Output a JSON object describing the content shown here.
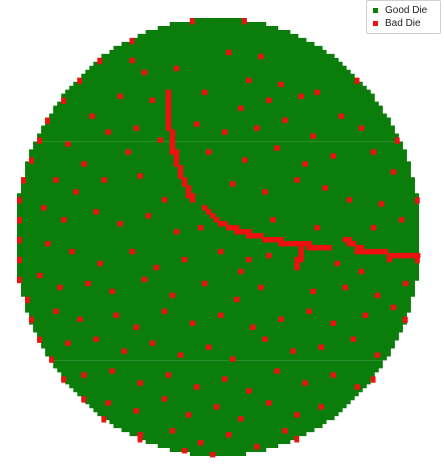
{
  "chart_data": {
    "type": "scatter",
    "title": "",
    "xlabel": "",
    "ylabel": "",
    "grid": false,
    "legend_placement": "top-right",
    "wafer": {
      "grid_columns": 100,
      "grid_rows": 110,
      "radius_cols": 50,
      "radius_rows": 55
    },
    "series": [
      {
        "name": "Good Die",
        "color": "#0b7d0b",
        "fill": "all dies within wafer edge not marked bad"
      },
      {
        "name": "Bad Die",
        "color": "#ee1111",
        "scratches": [
          {
            "from": [
              37,
              18
            ],
            "to": [
              37,
              24
            ]
          },
          {
            "from": [
              37,
              24
            ],
            "to": [
              38,
              31
            ]
          },
          {
            "from": [
              38,
              31
            ],
            "to": [
              40,
              38
            ]
          },
          {
            "from": [
              40,
              38
            ],
            "to": [
              43,
              45
            ]
          },
          {
            "from": [
              46,
              47
            ],
            "to": [
              50,
              51
            ]
          },
          {
            "from": [
              50,
              51
            ],
            "to": [
              58,
              54
            ]
          },
          {
            "from": [
              58,
              54
            ],
            "to": [
              67,
              56
            ]
          },
          {
            "from": [
              67,
              56
            ],
            "to": [
              77,
              57
            ]
          },
          {
            "from": [
              81,
              55
            ],
            "to": [
              86,
              58
            ]
          },
          {
            "from": [
              84,
              58
            ],
            "to": [
              99,
              59
            ]
          },
          {
            "from": [
              70,
              57
            ],
            "to": [
              69,
              62
            ]
          }
        ],
        "points": [
          [
            28,
            10
          ],
          [
            31,
            13
          ],
          [
            52,
            8
          ],
          [
            60,
            9
          ],
          [
            39,
            12
          ],
          [
            57,
            15
          ],
          [
            65,
            16
          ],
          [
            70,
            19
          ],
          [
            25,
            19
          ],
          [
            33,
            20
          ],
          [
            46,
            18
          ],
          [
            55,
            22
          ],
          [
            62,
            20
          ],
          [
            74,
            18
          ],
          [
            80,
            24
          ],
          [
            18,
            24
          ],
          [
            22,
            28
          ],
          [
            29,
            27
          ],
          [
            44,
            26
          ],
          [
            51,
            28
          ],
          [
            59,
            27
          ],
          [
            66,
            25
          ],
          [
            73,
            29
          ],
          [
            85,
            27
          ],
          [
            12,
            31
          ],
          [
            16,
            36
          ],
          [
            27,
            33
          ],
          [
            35,
            30
          ],
          [
            47,
            33
          ],
          [
            56,
            35
          ],
          [
            64,
            32
          ],
          [
            71,
            36
          ],
          [
            78,
            34
          ],
          [
            88,
            33
          ],
          [
            93,
            38
          ],
          [
            9,
            40
          ],
          [
            14,
            43
          ],
          [
            21,
            40
          ],
          [
            30,
            39
          ],
          [
            36,
            45
          ],
          [
            53,
            41
          ],
          [
            61,
            43
          ],
          [
            69,
            40
          ],
          [
            76,
            42
          ],
          [
            82,
            45
          ],
          [
            90,
            46
          ],
          [
            6,
            47
          ],
          [
            11,
            50
          ],
          [
            19,
            48
          ],
          [
            25,
            51
          ],
          [
            32,
            49
          ],
          [
            39,
            53
          ],
          [
            45,
            52
          ],
          [
            57,
            60
          ],
          [
            63,
            50
          ],
          [
            74,
            52
          ],
          [
            88,
            52
          ],
          [
            95,
            50
          ],
          [
            7,
            56
          ],
          [
            13,
            58
          ],
          [
            20,
            61
          ],
          [
            28,
            58
          ],
          [
            34,
            62
          ],
          [
            41,
            60
          ],
          [
            50,
            58
          ],
          [
            55,
            63
          ],
          [
            62,
            59
          ],
          [
            79,
            61
          ],
          [
            85,
            63
          ],
          [
            92,
            60
          ],
          [
            5,
            64
          ],
          [
            10,
            67
          ],
          [
            17,
            66
          ],
          [
            23,
            68
          ],
          [
            31,
            65
          ],
          [
            38,
            69
          ],
          [
            46,
            66
          ],
          [
            54,
            70
          ],
          [
            60,
            67
          ],
          [
            73,
            68
          ],
          [
            81,
            67
          ],
          [
            89,
            69
          ],
          [
            96,
            66
          ],
          [
            9,
            73
          ],
          [
            15,
            75
          ],
          [
            24,
            74
          ],
          [
            29,
            77
          ],
          [
            36,
            73
          ],
          [
            43,
            76
          ],
          [
            50,
            74
          ],
          [
            58,
            77
          ],
          [
            65,
            75
          ],
          [
            72,
            73
          ],
          [
            78,
            76
          ],
          [
            86,
            74
          ],
          [
            93,
            72
          ],
          [
            12,
            81
          ],
          [
            19,
            80
          ],
          [
            26,
            83
          ],
          [
            33,
            81
          ],
          [
            40,
            84
          ],
          [
            47,
            82
          ],
          [
            53,
            85
          ],
          [
            61,
            80
          ],
          [
            68,
            83
          ],
          [
            75,
            82
          ],
          [
            83,
            80
          ],
          [
            89,
            84
          ],
          [
            16,
            89
          ],
          [
            23,
            88
          ],
          [
            30,
            91
          ],
          [
            37,
            89
          ],
          [
            44,
            92
          ],
          [
            51,
            90
          ],
          [
            57,
            93
          ],
          [
            64,
            88
          ],
          [
            71,
            91
          ],
          [
            78,
            89
          ],
          [
            84,
            92
          ],
          [
            22,
            96
          ],
          [
            29,
            98
          ],
          [
            36,
            95
          ],
          [
            42,
            99
          ],
          [
            49,
            97
          ],
          [
            55,
            100
          ],
          [
            62,
            96
          ],
          [
            69,
            99
          ],
          [
            75,
            97
          ],
          [
            30,
            104
          ],
          [
            38,
            103
          ],
          [
            45,
            106
          ],
          [
            52,
            104
          ],
          [
            59,
            107
          ],
          [
            66,
            103
          ],
          [
            41,
            108
          ],
          [
            48,
            109
          ],
          [
            56,
            110
          ]
        ]
      }
    ]
  }
}
